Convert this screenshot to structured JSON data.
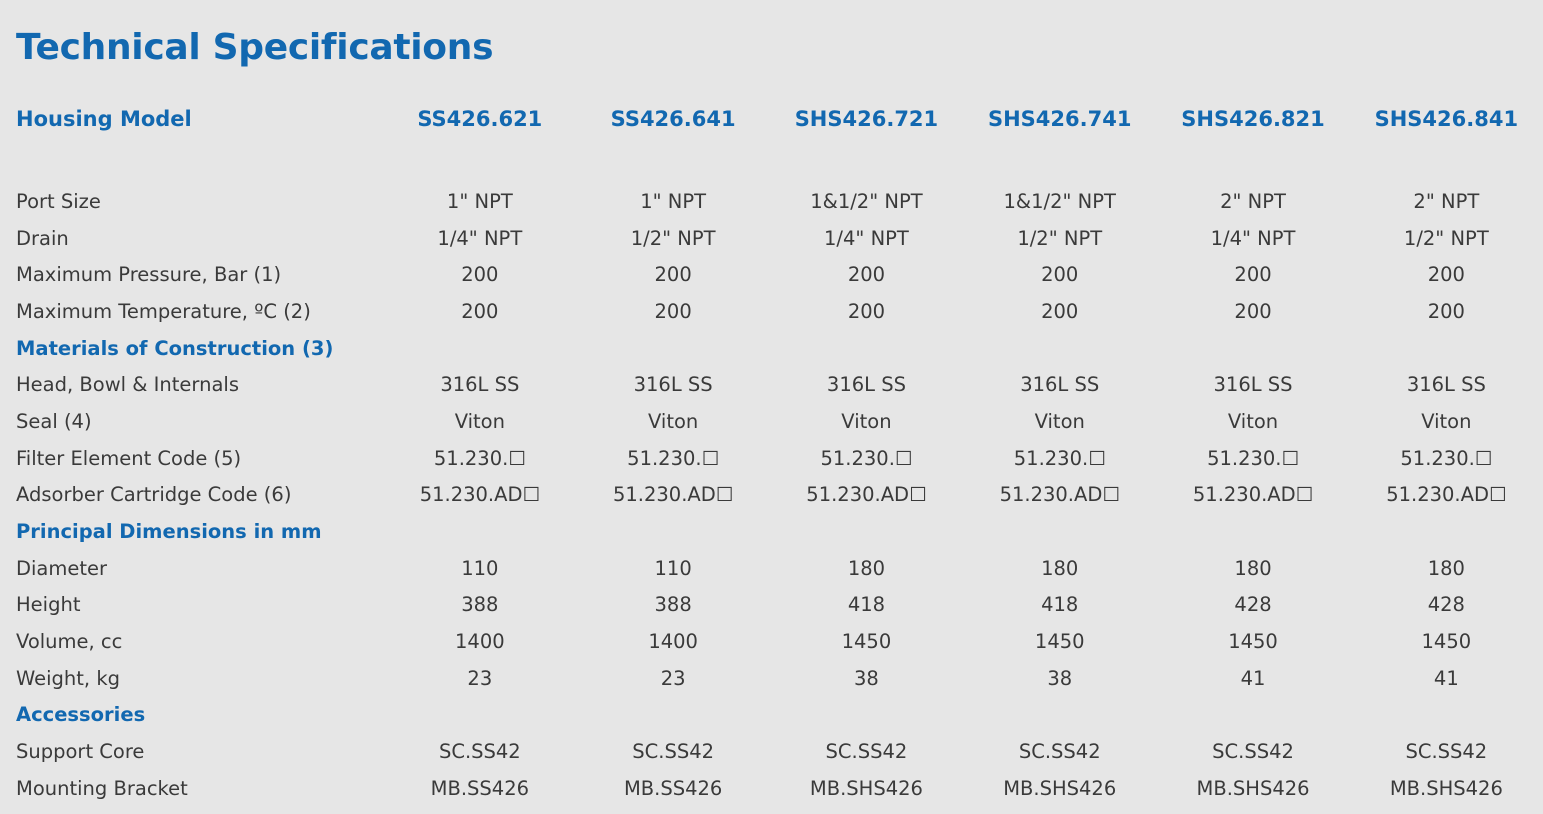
{
  "title": "Technical Specifications",
  "header": {
    "label": "Housing Model",
    "models": [
      "SS426.621",
      "SS426.641",
      "SHS426.721",
      "SHS426.741",
      "SHS426.821",
      "SHS426.841"
    ]
  },
  "rows": [
    {
      "type": "data",
      "label": "Port Size",
      "values": [
        "1\" NPT",
        "1\" NPT",
        "1&1/2\" NPT",
        "1&1/2\" NPT",
        "2\" NPT",
        "2\" NPT"
      ]
    },
    {
      "type": "data",
      "label": "Drain",
      "values": [
        "1/4\" NPT",
        "1/2\" NPT",
        "1/4\" NPT",
        "1/2\" NPT",
        "1/4\" NPT",
        "1/2\" NPT"
      ]
    },
    {
      "type": "data",
      "label": "Maximum Pressure, Bar (1)",
      "values": [
        "200",
        "200",
        "200",
        "200",
        "200",
        "200"
      ]
    },
    {
      "type": "data",
      "label": "Maximum Temperature, ºC (2)",
      "values": [
        "200",
        "200",
        "200",
        "200",
        "200",
        "200"
      ]
    },
    {
      "type": "section",
      "label": "Materials of Construction (3)"
    },
    {
      "type": "data",
      "label": "Head, Bowl & Internals",
      "values": [
        "316L SS",
        "316L SS",
        "316L SS",
        "316L SS",
        "316L SS",
        "316L SS"
      ]
    },
    {
      "type": "data",
      "label": "Seal (4)",
      "values": [
        "Viton",
        "Viton",
        "Viton",
        "Viton",
        "Viton",
        "Viton"
      ]
    },
    {
      "type": "data",
      "label": "Filter Element Code (5)",
      "values": [
        "51.230.☐",
        "51.230.☐",
        "51.230.☐",
        "51.230.☐",
        "51.230.☐",
        "51.230.☐"
      ]
    },
    {
      "type": "data",
      "label": "Adsorber Cartridge Code (6)",
      "values": [
        "51.230.AD☐",
        "51.230.AD☐",
        "51.230.AD☐",
        "51.230.AD☐",
        "51.230.AD☐",
        "51.230.AD☐"
      ]
    },
    {
      "type": "section",
      "label": "Principal Dimensions in mm"
    },
    {
      "type": "data",
      "label": "Diameter",
      "values": [
        "110",
        "110",
        "180",
        "180",
        "180",
        "180"
      ]
    },
    {
      "type": "data",
      "label": "Height",
      "values": [
        "388",
        "388",
        "418",
        "418",
        "428",
        "428"
      ]
    },
    {
      "type": "data",
      "label": "Volume, cc",
      "values": [
        "1400",
        "1400",
        "1450",
        "1450",
        "1450",
        "1450"
      ]
    },
    {
      "type": "data",
      "label": "Weight, kg",
      "values": [
        "23",
        "23",
        "38",
        "38",
        "41",
        "41"
      ]
    },
    {
      "type": "section",
      "label": "Accessories"
    },
    {
      "type": "data",
      "label": "Support Core",
      "values": [
        "SC.SS42",
        "SC.SS42",
        "SC.SS42",
        "SC.SS42",
        "SC.SS42",
        "SC.SS42"
      ]
    },
    {
      "type": "data",
      "label": "Mounting Bracket",
      "values": [
        "MB.SS426",
        "MB.SS426",
        "MB.SHS426",
        "MB.SHS426",
        "MB.SHS426",
        "MB.SHS426"
      ]
    }
  ]
}
